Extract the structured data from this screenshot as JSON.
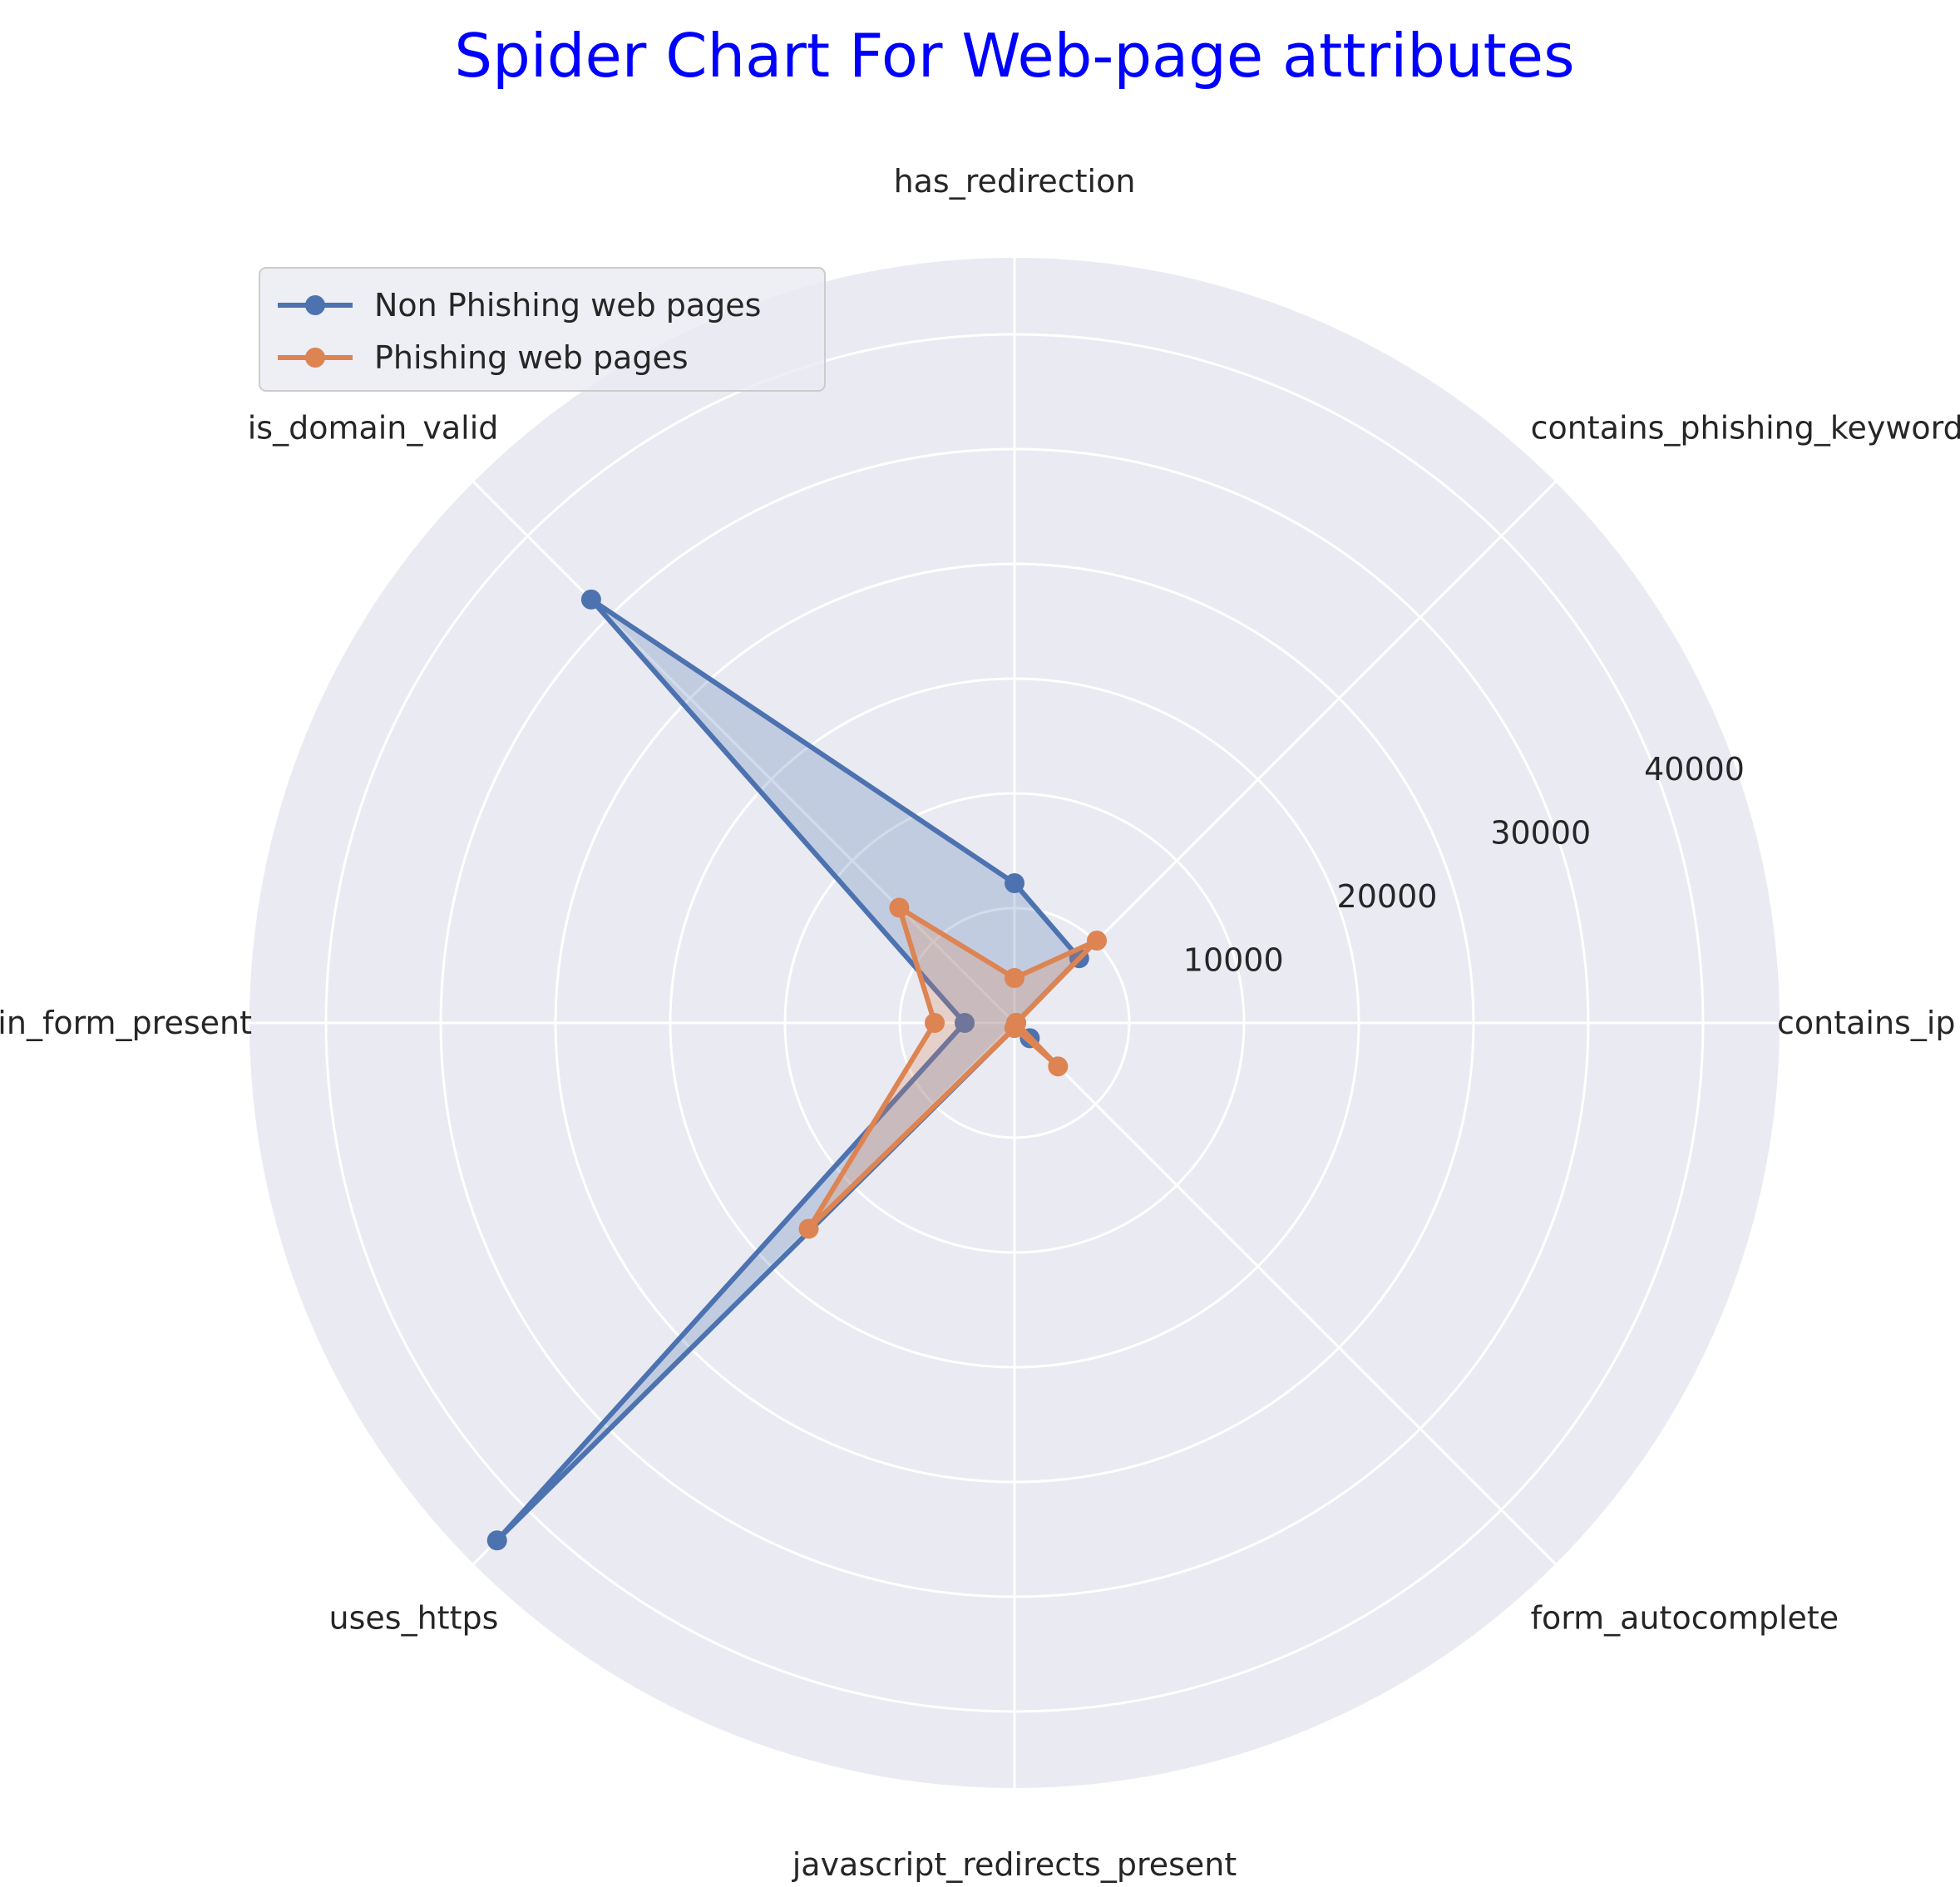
{
  "chart_data": {
    "type": "radar",
    "title": "Spider Chart For Web-page attributes",
    "title_color": "#0000ff",
    "axes": [
      "has_redirection",
      "contains_phishing_keywords",
      "contains_ip",
      "form_autocomplete",
      "javascript_redirects_present",
      "uses_https",
      "login_form_present",
      "is_domain_valid"
    ],
    "r_ticks": [
      10000,
      20000,
      30000,
      40000
    ],
    "r_tick_labels": [
      "10000",
      "20000",
      "30000",
      "40000"
    ],
    "r_max": 46000,
    "grid": true,
    "legend_position": "upper-left",
    "series": [
      {
        "name": "Non Phishing web pages",
        "color": "#4c72b0",
        "values": [
          8400,
          5500,
          100,
          1300,
          300,
          44000,
          3000,
          36000
        ]
      },
      {
        "name": "Phishing web pages",
        "color": "#dd8452",
        "values": [
          2700,
          7000,
          100,
          3700,
          300,
          17500,
          4800,
          9800
        ]
      }
    ]
  }
}
